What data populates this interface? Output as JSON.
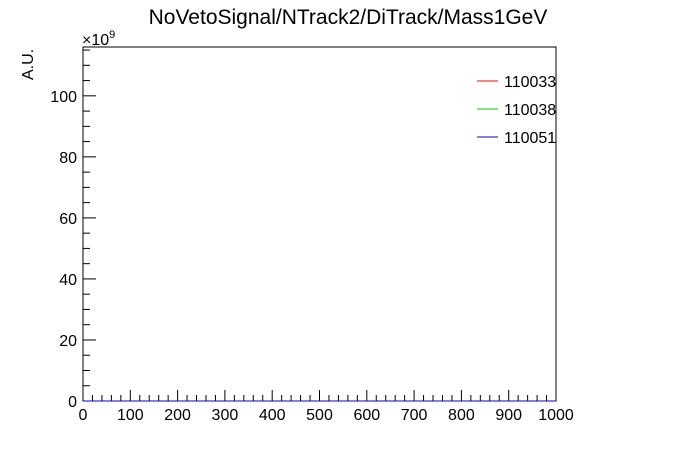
{
  "chart_data": {
    "type": "line",
    "title": "NoVetoSignal/NTrack2/DiTrack/Mass1GeV",
    "xlabel": "",
    "ylabel": "A.U.",
    "y_multiplier": "×10",
    "y_multiplier_exp": "9",
    "xlim": [
      0,
      1000
    ],
    "ylim": [
      0,
      116
    ],
    "x_ticks": [
      0,
      100,
      200,
      300,
      400,
      500,
      600,
      700,
      800,
      900,
      1000
    ],
    "y_ticks": [
      0,
      20,
      40,
      60,
      80,
      100
    ],
    "grid": false,
    "legend_position": "top-right",
    "series": [
      {
        "name": "110033",
        "color": "#ff0000",
        "values": [
          0,
          0
        ]
      },
      {
        "name": "110038",
        "color": "#00cc00",
        "values": [
          0,
          0
        ]
      },
      {
        "name": "110051",
        "color": "#0000cc",
        "values": [
          0,
          0
        ]
      }
    ],
    "x": [
      0,
      1000
    ]
  }
}
